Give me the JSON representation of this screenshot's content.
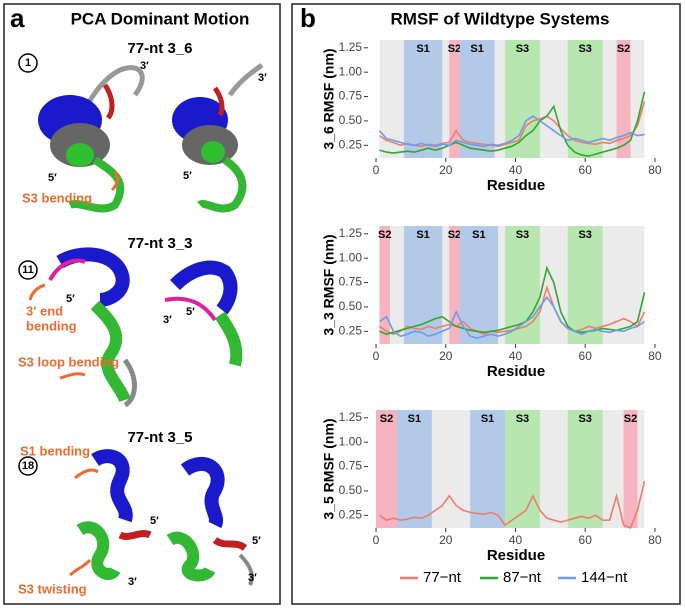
{
  "panel_a": {
    "label": "a",
    "title": "PCA Dominant Motion",
    "sections": [
      {
        "number": "1",
        "title": "77-nt 3_6",
        "labels": [
          "3′",
          "3′",
          "5′",
          "5′",
          "S3 bending"
        ]
      },
      {
        "number": "11",
        "title": "77-nt 3_3",
        "labels": [
          "3′ end",
          "bending",
          "5′",
          "3′",
          "5′",
          "S3 loop bending"
        ]
      },
      {
        "number": "18",
        "title": "77-nt 3_5",
        "labels": [
          "S1 bending",
          "5′",
          "5′",
          "3′",
          "3′",
          "S3 twisting"
        ]
      }
    ]
  },
  "panel_b": {
    "label": "b",
    "title": "RMSF of Wildtype Systems"
  },
  "chart_data": [
    {
      "type": "line",
      "y_label": "3_6 RMSF (nm)",
      "x_label": "Residue",
      "xlim": [
        -2.3,
        82.6
      ],
      "xticks": [
        0,
        20,
        40,
        60,
        80
      ],
      "ylim": [
        0.12,
        1.33
      ],
      "yticks": [
        0.25,
        {
          "value": 0.5,
          "label": "0.50"
        },
        {
          "value": 0.75,
          "label": "0.75"
        },
        {
          "value": 1,
          "label": "1.00"
        },
        1.25
      ],
      "regions": [
        {
          "label": "S1",
          "start": 8,
          "end": 19,
          "color": "#b3c9e8"
        },
        {
          "label": "S2",
          "start": 21,
          "end": 24,
          "color": "#f6b3c0"
        },
        {
          "label": "S1",
          "start": 24,
          "end": 34,
          "color": "#b3c9e8"
        },
        {
          "label": "S3",
          "start": 37,
          "end": 47,
          "color": "#b8e6b0"
        },
        {
          "label": "S3",
          "start": 55,
          "end": 65,
          "color": "#b8e6b0"
        },
        {
          "label": "S2",
          "start": 69,
          "end": 73,
          "color": "#f6b3c0"
        }
      ],
      "x": [
        1,
        3,
        5,
        7,
        9,
        11,
        13,
        15,
        17,
        19,
        21,
        23,
        25,
        27,
        29,
        31,
        33,
        35,
        37,
        39,
        41,
        43,
        45,
        47,
        49,
        51,
        53,
        55,
        57,
        59,
        61,
        63,
        65,
        67,
        69,
        71,
        73,
        75,
        77
      ],
      "series": [
        {
          "name": "77−nt",
          "color": "#f07c6c",
          "values": [
            0.35,
            0.3,
            0.28,
            0.25,
            0.27,
            0.25,
            0.24,
            0.26,
            0.25,
            0.27,
            0.28,
            0.4,
            0.3,
            0.28,
            0.27,
            0.26,
            0.25,
            0.24,
            0.26,
            0.28,
            0.3,
            0.45,
            0.5,
            0.52,
            0.55,
            0.5,
            0.42,
            0.35,
            0.3,
            0.28,
            0.27,
            0.26,
            0.28,
            0.27,
            0.3,
            0.32,
            0.35,
            0.45,
            0.7
          ]
        },
        {
          "name": "87−nt",
          "color": "#2ea82e",
          "values": [
            0.2,
            0.18,
            0.17,
            0.18,
            0.19,
            0.18,
            0.2,
            0.22,
            0.2,
            0.22,
            0.25,
            0.28,
            0.25,
            0.22,
            0.21,
            0.2,
            0.19,
            0.2,
            0.22,
            0.24,
            0.28,
            0.35,
            0.4,
            0.5,
            0.55,
            0.65,
            0.4,
            0.25,
            0.18,
            0.15,
            0.14,
            0.16,
            0.18,
            0.2,
            0.22,
            0.25,
            0.3,
            0.5,
            0.8
          ]
        },
        {
          "name": "144−nt",
          "color": "#6c9bea",
          "values": [
            0.4,
            0.32,
            0.3,
            0.28,
            0.26,
            0.25,
            0.27,
            0.25,
            0.24,
            0.26,
            0.25,
            0.3,
            0.28,
            0.26,
            0.25,
            0.24,
            0.26,
            0.25,
            0.27,
            0.3,
            0.35,
            0.5,
            0.55,
            0.5,
            0.45,
            0.4,
            0.35,
            0.3,
            0.32,
            0.3,
            0.28,
            0.3,
            0.32,
            0.3,
            0.33,
            0.35,
            0.38,
            0.35,
            0.36
          ]
        }
      ]
    },
    {
      "type": "line",
      "y_label": "3_3 RMSF (nm)",
      "x_label": "Residue",
      "xlim": [
        -2.3,
        82.6
      ],
      "xticks": [
        0,
        20,
        40,
        60,
        80
      ],
      "ylim": [
        0.12,
        1.33
      ],
      "yticks": [
        0.25,
        {
          "value": 0.5,
          "label": "0.50"
        },
        {
          "value": 0.75,
          "label": "0.75"
        },
        {
          "value": 1,
          "label": "1.00"
        },
        1.25
      ],
      "regions": [
        {
          "label": "S2",
          "start": 1,
          "end": 4,
          "color": "#f6b3c0"
        },
        {
          "label": "S1",
          "start": 8,
          "end": 19,
          "color": "#b3c9e8"
        },
        {
          "label": "S2",
          "start": 21,
          "end": 24,
          "color": "#f6b3c0"
        },
        {
          "label": "S1",
          "start": 24,
          "end": 35,
          "color": "#b3c9e8"
        },
        {
          "label": "S3",
          "start": 37,
          "end": 47,
          "color": "#b8e6b0"
        },
        {
          "label": "S3",
          "start": 55,
          "end": 65,
          "color": "#b8e6b0"
        }
      ],
      "x": [
        1,
        3,
        5,
        7,
        9,
        11,
        13,
        15,
        17,
        19,
        21,
        23,
        25,
        27,
        29,
        31,
        33,
        35,
        37,
        39,
        41,
        43,
        45,
        47,
        49,
        51,
        53,
        55,
        57,
        59,
        61,
        63,
        65,
        67,
        69,
        71,
        73,
        75,
        77
      ],
      "series": [
        {
          "name": "77−nt",
          "color": "#f07c6c",
          "values": [
            0.3,
            0.25,
            0.22,
            0.25,
            0.3,
            0.28,
            0.27,
            0.3,
            0.28,
            0.3,
            0.32,
            0.3,
            0.35,
            0.28,
            0.25,
            0.22,
            0.25,
            0.24,
            0.25,
            0.26,
            0.28,
            0.3,
            0.35,
            0.45,
            0.7,
            0.5,
            0.35,
            0.28,
            0.25,
            0.27,
            0.3,
            0.28,
            0.3,
            0.32,
            0.35,
            0.38,
            0.35,
            0.3,
            0.45
          ]
        },
        {
          "name": "87−nt",
          "color": "#2ea82e",
          "values": [
            0.25,
            0.22,
            0.24,
            0.26,
            0.28,
            0.3,
            0.32,
            0.35,
            0.38,
            0.4,
            0.35,
            0.3,
            0.28,
            0.26,
            0.25,
            0.24,
            0.25,
            0.26,
            0.28,
            0.3,
            0.32,
            0.35,
            0.45,
            0.6,
            0.9,
            0.75,
            0.45,
            0.3,
            0.25,
            0.24,
            0.25,
            0.26,
            0.28,
            0.27,
            0.26,
            0.28,
            0.3,
            0.35,
            0.65
          ]
        },
        {
          "name": "144−nt",
          "color": "#6c9bea",
          "values": [
            0.35,
            0.4,
            0.25,
            0.2,
            0.22,
            0.25,
            0.24,
            0.2,
            0.22,
            0.25,
            0.28,
            0.45,
            0.3,
            0.2,
            0.18,
            0.2,
            0.22,
            0.2,
            0.22,
            0.25,
            0.3,
            0.35,
            0.4,
            0.5,
            0.6,
            0.5,
            0.35,
            0.28,
            0.25,
            0.22,
            0.25,
            0.27,
            0.25,
            0.24,
            0.26,
            0.25,
            0.28,
            0.3,
            0.35
          ]
        }
      ]
    },
    {
      "type": "line",
      "y_label": "3_5 RMSF (nm)",
      "x_label": "Residue",
      "xlim": [
        -2.3,
        82.6
      ],
      "xticks": [
        0,
        20,
        40,
        60,
        80
      ],
      "ylim": [
        0.12,
        1.33
      ],
      "yticks": [
        0.25,
        {
          "value": 0.5,
          "label": "0.50"
        },
        {
          "value": 0.75,
          "label": "0.75"
        },
        {
          "value": 1,
          "label": "1.00"
        },
        1.25
      ],
      "regions": [
        {
          "label": "S2",
          "start": 0,
          "end": 6,
          "color": "#f6b3c0"
        },
        {
          "label": "S1",
          "start": 6,
          "end": 16,
          "color": "#b3c9e8"
        },
        {
          "label": "S1",
          "start": 27,
          "end": 37,
          "color": "#b3c9e8"
        },
        {
          "label": "S3",
          "start": 37,
          "end": 47,
          "color": "#b8e6b0"
        },
        {
          "label": "S3",
          "start": 55,
          "end": 65,
          "color": "#b8e6b0"
        },
        {
          "label": "S2",
          "start": 71,
          "end": 75,
          "color": "#f6b3c0"
        }
      ],
      "x": [
        1,
        3,
        5,
        7,
        9,
        11,
        13,
        15,
        17,
        19,
        21,
        23,
        25,
        27,
        29,
        31,
        33,
        35,
        37,
        39,
        41,
        43,
        45,
        47,
        49,
        51,
        53,
        55,
        57,
        59,
        61,
        63,
        65,
        67,
        69,
        71,
        73,
        75,
        77
      ],
      "series": [
        {
          "name": "77−nt",
          "color": "#f07c6c",
          "values": [
            0.25,
            0.2,
            0.22,
            0.2,
            0.21,
            0.23,
            0.22,
            0.25,
            0.3,
            0.35,
            0.45,
            0.35,
            0.3,
            0.28,
            0.27,
            0.26,
            0.28,
            0.25,
            0.15,
            0.2,
            0.25,
            0.3,
            0.45,
            0.3,
            0.22,
            0.2,
            0.18,
            0.2,
            0.22,
            0.24,
            0.22,
            0.25,
            0.2,
            0.2,
            0.45,
            0.15,
            0.12,
            0.3,
            0.6
          ]
        }
      ]
    }
  ]
}
